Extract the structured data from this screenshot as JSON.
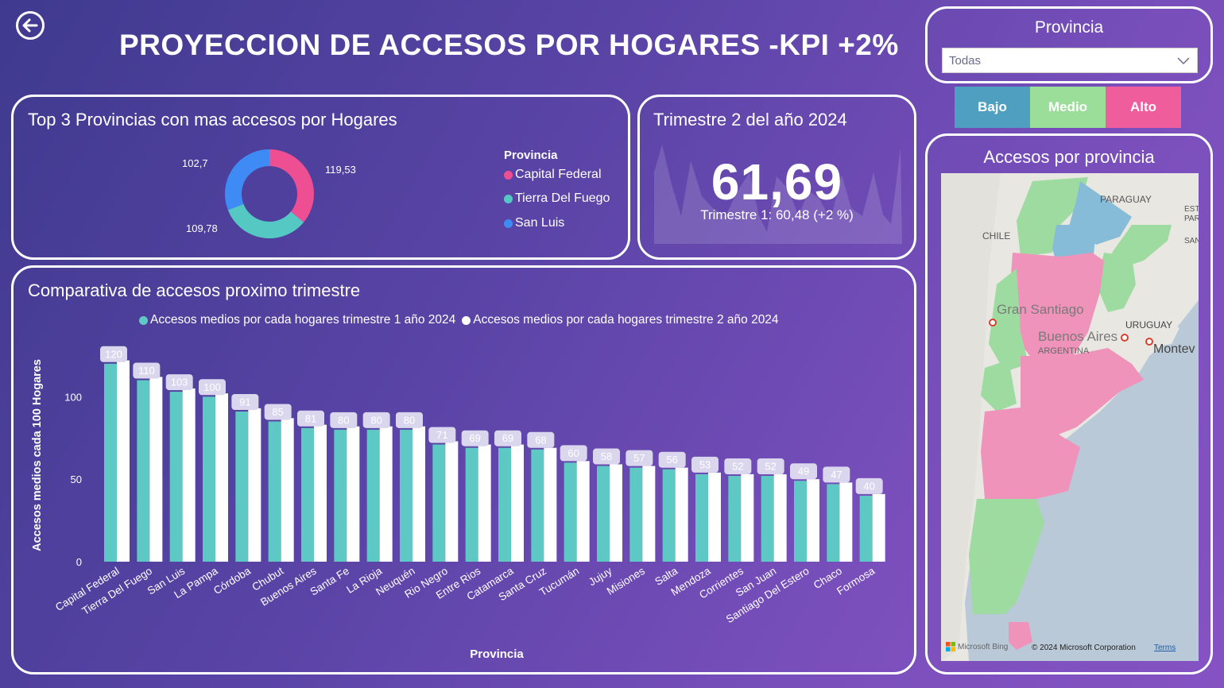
{
  "header": {
    "title": "PROYECCION DE ACCESOS POR HOGARES -KPI +2%"
  },
  "top3": {
    "title": "Top 3 Provincias con mas accesos por Hogares",
    "legend_title": "Provincia",
    "slices": [
      {
        "name": "Capital Federal",
        "value": 119.53,
        "label": "119,53",
        "color": "#ee4f92"
      },
      {
        "name": "Tierra Del Fuego",
        "value": 109.78,
        "label": "109,78",
        "color": "#56c8c4"
      },
      {
        "name": "San Luis",
        "value": 102.7,
        "label": "102,7",
        "color": "#3f8bf5"
      }
    ]
  },
  "kpi": {
    "title": "Trimestre 2 del año 2024",
    "value": "61,69",
    "subtitle": "Trimestre 1: 60,48 (+2 %)"
  },
  "comparativa": {
    "title": "Comparativa de accesos proximo trimestre",
    "legend": [
      {
        "label": "Accesos medios por cada hogares trimestre 1 año 2024",
        "color": "#5ec9c4"
      },
      {
        "label": "Accesos medios por cada hogares trimestre 2 año 2024",
        "color": "#ffffff"
      }
    ]
  },
  "chart_data": {
    "type": "bar",
    "xlabel": "Provincia",
    "ylabel": "Accesos medios cada 100 Hogares",
    "ylim": [
      0,
      130
    ],
    "yticks": [
      0,
      50,
      100
    ],
    "categories": [
      "Capital Federal",
      "Tierra Del Fuego",
      "San Luis",
      "La Pampa",
      "Córdoba",
      "Chubut",
      "Buenos Aires",
      "Santa Fe",
      "La Rioja",
      "Neuquén",
      "Rio Negro",
      "Entre Rios",
      "Catamarca",
      "Santa Cruz",
      "Tucumán",
      "Jujuy",
      "Misiones",
      "Salta",
      "Mendoza",
      "Corrientes",
      "San Juan",
      "Santiago Del Estero",
      "Chaco",
      "Formosa"
    ],
    "series": [
      {
        "name": "Accesos medios por cada hogares trimestre 1 año 2024",
        "color": "#5ec9c4",
        "values": [
          120,
          110,
          103,
          100,
          91,
          85,
          81,
          80,
          80,
          80,
          71,
          69,
          69,
          68,
          60,
          58,
          57,
          56,
          53,
          52,
          52,
          49,
          47,
          40
        ]
      },
      {
        "name": "Accesos medios por cada hogares trimestre 2 año 2024",
        "color": "#ffffff",
        "values": [
          122,
          112,
          105,
          102,
          93,
          87,
          83,
          82,
          82,
          82,
          73,
          71,
          71,
          69,
          61,
          59,
          58,
          57,
          54,
          53,
          53,
          50,
          48,
          41
        ]
      }
    ],
    "data_labels": [
      "120",
      "110",
      "103",
      "100",
      "91",
      "85",
      "81",
      "80",
      "80",
      "80",
      "71",
      "69",
      "69",
      "68",
      "60",
      "58",
      "57",
      "56",
      "53",
      "52",
      "52",
      "49",
      "47",
      "40"
    ],
    "grid": false,
    "legend_position": "top"
  },
  "filter": {
    "title": "Provincia",
    "selected": "Todas"
  },
  "levels": [
    {
      "label": "Bajo",
      "color": "#4fa0c0"
    },
    {
      "label": "Medio",
      "color": "#9bde9a"
    },
    {
      "label": "Alto",
      "color": "#ef5d9c"
    }
  ],
  "map": {
    "title": "Accesos por provincia",
    "labels": {
      "paraguay": "PARAGUAY",
      "chile": "CHILE",
      "uruguay": "URUGUAY",
      "gran_santiago": "Gran Santiago",
      "buenos_aires": "Buenos Aires",
      "argentina": "ARGENTINA",
      "montevideo": "Montev",
      "este": "ESTE",
      "para": "PARA",
      "san": "SAN"
    },
    "attribution": "Microsoft Bing",
    "copyright": "© 2024 Microsoft Corporation",
    "terms": "Terms"
  }
}
